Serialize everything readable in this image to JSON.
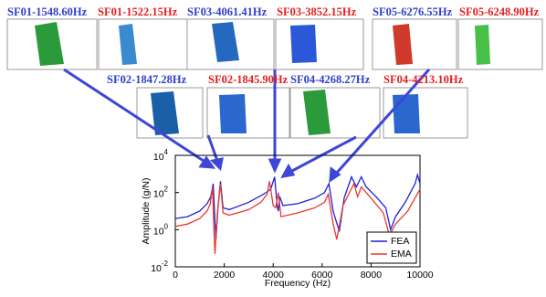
{
  "modes": [
    {
      "fea": "SF01-1548.60Hz",
      "ema": "SF01-1522.15Hz"
    },
    {
      "fea": "SF02-1847.28Hz",
      "ema": "SF02-1845.90Hz"
    },
    {
      "fea": "SF03-4061.41Hz",
      "ema": "SF03-3852.15Hz"
    },
    {
      "fea": "SF04-4268.27Hz",
      "ema": "SF04-4213.10Hz"
    },
    {
      "fea": "SF05-6276.55Hz",
      "ema": "SF05-6248.90Hz"
    }
  ],
  "chart_data": {
    "type": "line",
    "x_label": "Frequency (Hz)",
    "y_label": "Amplitude (g/N)",
    "xlim": [
      0,
      10000
    ],
    "xticks": [
      0,
      2000,
      4000,
      6000,
      8000,
      10000
    ],
    "ylim": [
      0.01,
      10000
    ],
    "log_y": true,
    "yticks": [
      {
        "value": 0.01,
        "label": "10",
        "power": "-2"
      },
      {
        "value": 1,
        "label": "10",
        "power": "0"
      },
      {
        "value": 100,
        "label": "10",
        "power": "2"
      },
      {
        "value": 10000,
        "label": "10",
        "power": "4"
      }
    ],
    "legend": "bottom-right",
    "series": [
      {
        "name": "FEA",
        "color": "#1f1fd6",
        "x": [
          0,
          500,
          1000,
          1300,
          1450,
          1548,
          1620,
          1660,
          1750,
          1847,
          1950,
          2200,
          3000,
          3600,
          3900,
          4061,
          4160,
          4210,
          4268,
          4400,
          5000,
          5700,
          6100,
          6276,
          6450,
          6700,
          6900,
          7200,
          7400,
          7600,
          7800,
          8200,
          8600,
          8800,
          9000,
          9400,
          9800,
          9900,
          10000
        ],
        "values": [
          4,
          5,
          10,
          25,
          60,
          300,
          3,
          0.3,
          20,
          400,
          15,
          12,
          30,
          80,
          150,
          700,
          20,
          10,
          60,
          20,
          25,
          50,
          100,
          300,
          10,
          0.8,
          50,
          700,
          200,
          700,
          200,
          60,
          15,
          1,
          5,
          30,
          300,
          900,
          300
        ]
      },
      {
        "name": "EMA",
        "color": "#e8392e",
        "x": [
          0,
          500,
          1000,
          1300,
          1430,
          1522,
          1580,
          1620,
          1720,
          1846,
          1950,
          2200,
          3000,
          3500,
          3750,
          3852,
          4000,
          4100,
          4213,
          4320,
          5000,
          5700,
          6100,
          6249,
          6450,
          6600,
          6850,
          7300,
          7450,
          7600,
          8000,
          8500,
          8750,
          9000,
          9500,
          10000
        ],
        "values": [
          1.5,
          2,
          4,
          10,
          25,
          200,
          1,
          0.05,
          8,
          300,
          8,
          6,
          12,
          30,
          80,
          400,
          20,
          15,
          100,
          5,
          8,
          15,
          30,
          80,
          2,
          0.3,
          20,
          300,
          60,
          200,
          50,
          8,
          0.5,
          2,
          10,
          150
        ]
      }
    ]
  }
}
